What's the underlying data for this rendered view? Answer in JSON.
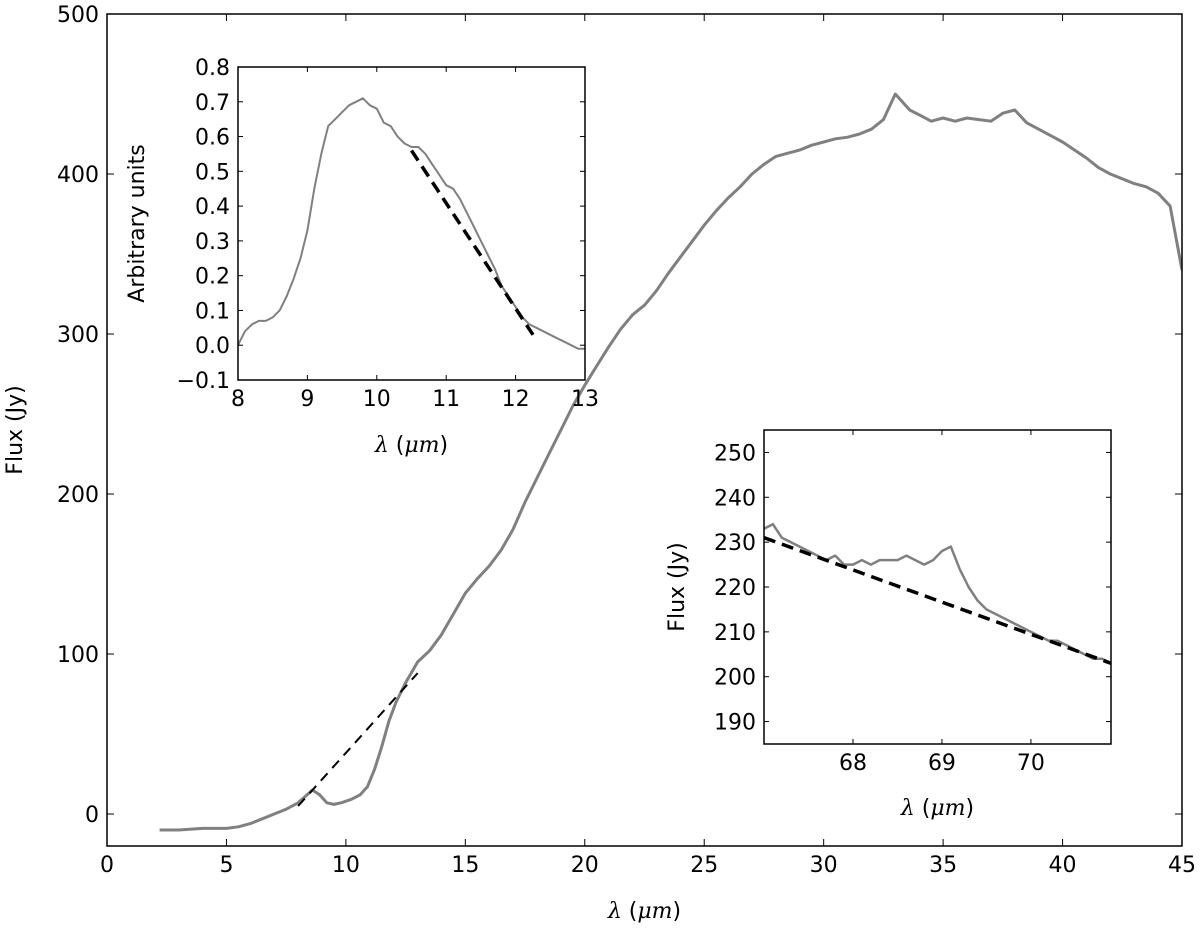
{
  "chart_data": [
    {
      "id": "main",
      "type": "line",
      "xlabel": "λ (μm)",
      "ylabel": "Flux (Jy)",
      "xlim": [
        0,
        45
      ],
      "ylim": [
        -20,
        500
      ],
      "xticks": [
        0,
        5,
        10,
        15,
        20,
        25,
        30,
        35,
        40,
        45
      ],
      "yticks": [
        0,
        100,
        200,
        300,
        400,
        500
      ],
      "grid": false,
      "series": [
        {
          "style": "solid",
          "color": "#808080",
          "x": [
            2.2,
            3.0,
            4.0,
            5.0,
            5.5,
            6.0,
            6.5,
            7.0,
            7.5,
            8.0,
            8.3,
            8.6,
            8.9,
            9.2,
            9.5,
            9.8,
            10.2,
            10.6,
            10.9,
            11.2,
            11.5,
            11.8,
            12.1,
            12.5,
            13.0,
            13.5,
            14.0,
            14.5,
            15.0,
            15.5,
            16.0,
            16.5,
            17.0,
            17.5,
            18.0,
            18.5,
            19.0,
            19.5,
            20.0,
            20.5,
            21.0,
            21.5,
            22.0,
            22.5,
            23.0,
            23.5,
            24.0,
            24.5,
            25.0,
            25.5,
            26.0,
            26.5,
            27.0,
            27.5,
            28.0,
            28.5,
            29.0,
            29.5,
            30.0,
            30.5,
            31.0,
            31.5,
            32.0,
            32.5,
            33.0,
            33.3,
            33.6,
            34.0,
            34.5,
            35.0,
            35.5,
            36.0,
            36.5,
            37.0,
            37.5,
            38.0,
            38.5,
            39.0,
            39.5,
            40.0,
            40.5,
            41.0,
            41.5,
            42.0,
            42.5,
            43.0,
            43.5,
            44.0,
            44.5,
            45.0
          ],
          "y": [
            -10,
            -10,
            -9,
            -9,
            -8,
            -6,
            -3,
            0,
            3,
            7,
            11,
            15,
            12,
            7,
            6,
            7,
            9,
            12,
            17,
            28,
            42,
            58,
            70,
            82,
            95,
            102,
            112,
            125,
            138,
            147,
            155,
            165,
            178,
            195,
            210,
            225,
            240,
            255,
            268,
            280,
            292,
            303,
            312,
            318,
            327,
            338,
            348,
            358,
            368,
            377,
            385,
            392,
            400,
            406,
            411,
            413,
            415,
            418,
            420,
            422,
            423,
            425,
            428,
            434,
            450,
            445,
            440,
            437,
            433,
            435,
            433,
            435,
            434,
            433,
            438,
            440,
            432,
            428,
            424,
            420,
            415,
            410,
            404,
            400,
            397,
            394,
            392,
            388,
            380,
            340
          ]
        },
        {
          "style": "dashed",
          "color": "#000000",
          "x": [
            8.0,
            13.0
          ],
          "y": [
            5,
            88
          ]
        }
      ]
    },
    {
      "id": "inset1",
      "type": "line",
      "xlabel": "λ (μm)",
      "ylabel": "Arbitrary units",
      "xlim": [
        8,
        13
      ],
      "ylim": [
        -0.1,
        0.8
      ],
      "xticks": [
        8,
        9,
        10,
        11,
        12,
        13
      ],
      "yticks": [
        -0.1,
        0.0,
        0.1,
        0.2,
        0.3,
        0.4,
        0.5,
        0.6,
        0.7,
        0.8
      ],
      "grid": false,
      "series": [
        {
          "style": "solid",
          "color": "#808080",
          "x": [
            8.0,
            8.1,
            8.2,
            8.3,
            8.4,
            8.5,
            8.6,
            8.7,
            8.8,
            8.9,
            9.0,
            9.1,
            9.2,
            9.3,
            9.4,
            9.5,
            9.6,
            9.7,
            9.8,
            9.9,
            10.0,
            10.1,
            10.2,
            10.3,
            10.4,
            10.5,
            10.6,
            10.7,
            10.8,
            10.9,
            11.0,
            11.1,
            11.2,
            11.3,
            11.4,
            11.5,
            11.6,
            11.7,
            11.8,
            11.9,
            12.0,
            12.1,
            12.2,
            12.3,
            12.4,
            12.5,
            12.6,
            12.7,
            12.8,
            12.9,
            13.0
          ],
          "y": [
            0.0,
            0.04,
            0.06,
            0.07,
            0.07,
            0.08,
            0.1,
            0.14,
            0.19,
            0.25,
            0.33,
            0.45,
            0.55,
            0.63,
            0.65,
            0.67,
            0.69,
            0.7,
            0.71,
            0.69,
            0.68,
            0.64,
            0.63,
            0.6,
            0.58,
            0.57,
            0.57,
            0.55,
            0.52,
            0.49,
            0.46,
            0.45,
            0.42,
            0.38,
            0.34,
            0.3,
            0.26,
            0.22,
            0.17,
            0.14,
            0.11,
            0.08,
            0.06,
            0.05,
            0.04,
            0.03,
            0.02,
            0.01,
            0.0,
            -0.01,
            -0.01
          ]
        },
        {
          "style": "dashed",
          "color": "#000000",
          "x": [
            10.5,
            12.25
          ],
          "y": [
            0.56,
            0.03
          ]
        }
      ]
    },
    {
      "id": "inset2",
      "type": "line",
      "xlabel": "λ (μm)",
      "ylabel": "Flux (Jy)",
      "xlim": [
        67.0,
        70.9
      ],
      "ylim": [
        185,
        255
      ],
      "xticks": [
        68,
        69,
        70
      ],
      "yticks": [
        190,
        200,
        210,
        220,
        230,
        240,
        250
      ],
      "grid": false,
      "series": [
        {
          "style": "solid",
          "color": "#808080",
          "x": [
            67.0,
            67.1,
            67.2,
            67.3,
            67.4,
            67.5,
            67.6,
            67.7,
            67.8,
            67.9,
            68.0,
            68.1,
            68.2,
            68.3,
            68.4,
            68.5,
            68.6,
            68.7,
            68.8,
            68.9,
            69.0,
            69.1,
            69.2,
            69.3,
            69.4,
            69.5,
            69.6,
            69.7,
            69.8,
            69.9,
            70.0,
            70.1,
            70.2,
            70.3,
            70.4,
            70.5,
            70.6,
            70.7,
            70.8,
            70.9
          ],
          "y": [
            233,
            234,
            231,
            230,
            229,
            228,
            227,
            226,
            227,
            225,
            225,
            226,
            225,
            226,
            226,
            226,
            227,
            226,
            225,
            226,
            228,
            229,
            224,
            220,
            217,
            215,
            214,
            213,
            212,
            211,
            210,
            209,
            208,
            208,
            207,
            206,
            205,
            204,
            204,
            203
          ]
        },
        {
          "style": "dashed",
          "color": "#000000",
          "x": [
            67.0,
            70.9
          ],
          "y": [
            231,
            203
          ]
        }
      ]
    }
  ]
}
